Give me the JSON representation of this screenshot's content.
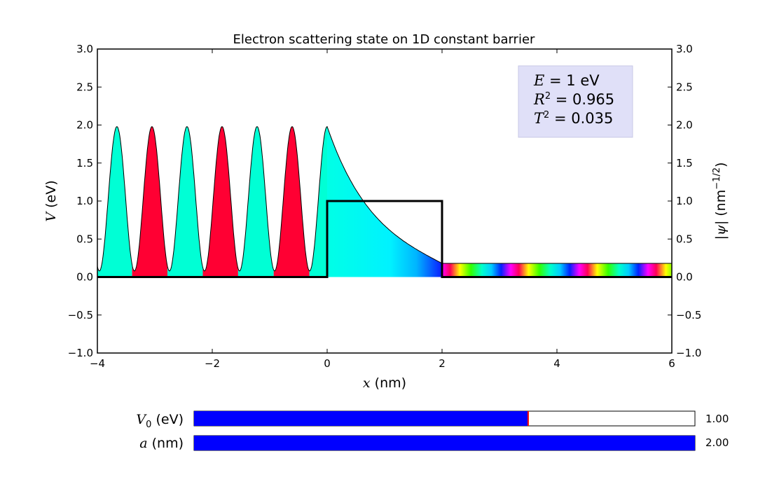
{
  "chart_data": {
    "type": "line",
    "title": "Electron scattering state on 1D constant barrier",
    "xlabel": "x (nm)",
    "ylabel_left": "V (eV)",
    "ylabel_right": "|ψ| (nm^-1/2)",
    "xlim": [
      -4,
      6
    ],
    "ylim": [
      -1.0,
      3.0
    ],
    "x_ticks": [
      "−4",
      "−2",
      "0",
      "2",
      "4",
      "6"
    ],
    "x_tick_values": [
      -4,
      -2,
      0,
      2,
      4,
      6
    ],
    "y_ticks": [
      "−1.0",
      "−0.5",
      "0.0",
      "0.5",
      "1.0",
      "1.5",
      "2.0",
      "2.5",
      "3.0"
    ],
    "y_tick_values": [
      -1.0,
      -0.5,
      0.0,
      0.5,
      1.0,
      1.5,
      2.0,
      2.5,
      3.0
    ],
    "grid": false,
    "legend": "none",
    "series": [
      {
        "kind": "potential",
        "x": [
          -4,
          0,
          0,
          2,
          2,
          6
        ],
        "y": [
          0,
          0,
          1,
          1,
          0,
          0
        ]
      },
      {
        "kind": "wavefunction-magnitude",
        "incident_region": {
          "x_start": -4,
          "x_end": 0,
          "peak": 1.98,
          "min": 0.08,
          "peaks_x": [
            -3.7,
            -3.09,
            -2.47,
            -1.86,
            -1.24,
            -0.62,
            0.0
          ]
        },
        "barrier_region": {
          "x_start": 0,
          "x_end": 2,
          "start": 1.98,
          "end": 0.18
        },
        "transmitted_region": {
          "x_start": 2,
          "x_end": 6,
          "value": 0.18
        }
      }
    ],
    "colors": {
      "cyan": "#00ffd5",
      "red": "#ff0033",
      "line": "#000000",
      "text_box_bg": "#e0e0f8"
    },
    "annotation": {
      "line1_var": "E",
      "line1_val": " = 1 eV",
      "line2_var": "R",
      "line2_val": " = 0.965",
      "line3_var": "T",
      "line3_val": " = 0.035",
      "power": "2",
      "placement": "top-right"
    }
  },
  "sliders": [
    {
      "label_var": "V",
      "label_sub": "0",
      "label_unit": " (eV)",
      "value": 1.0,
      "value_text": "1.00",
      "fraction": 0.667,
      "color": "#0000ff"
    },
    {
      "label_var": "a",
      "label_sub": "",
      "label_unit": " (nm)",
      "value": 2.0,
      "value_text": "2.00",
      "fraction": 1.0,
      "color": "#0000ff"
    }
  ]
}
